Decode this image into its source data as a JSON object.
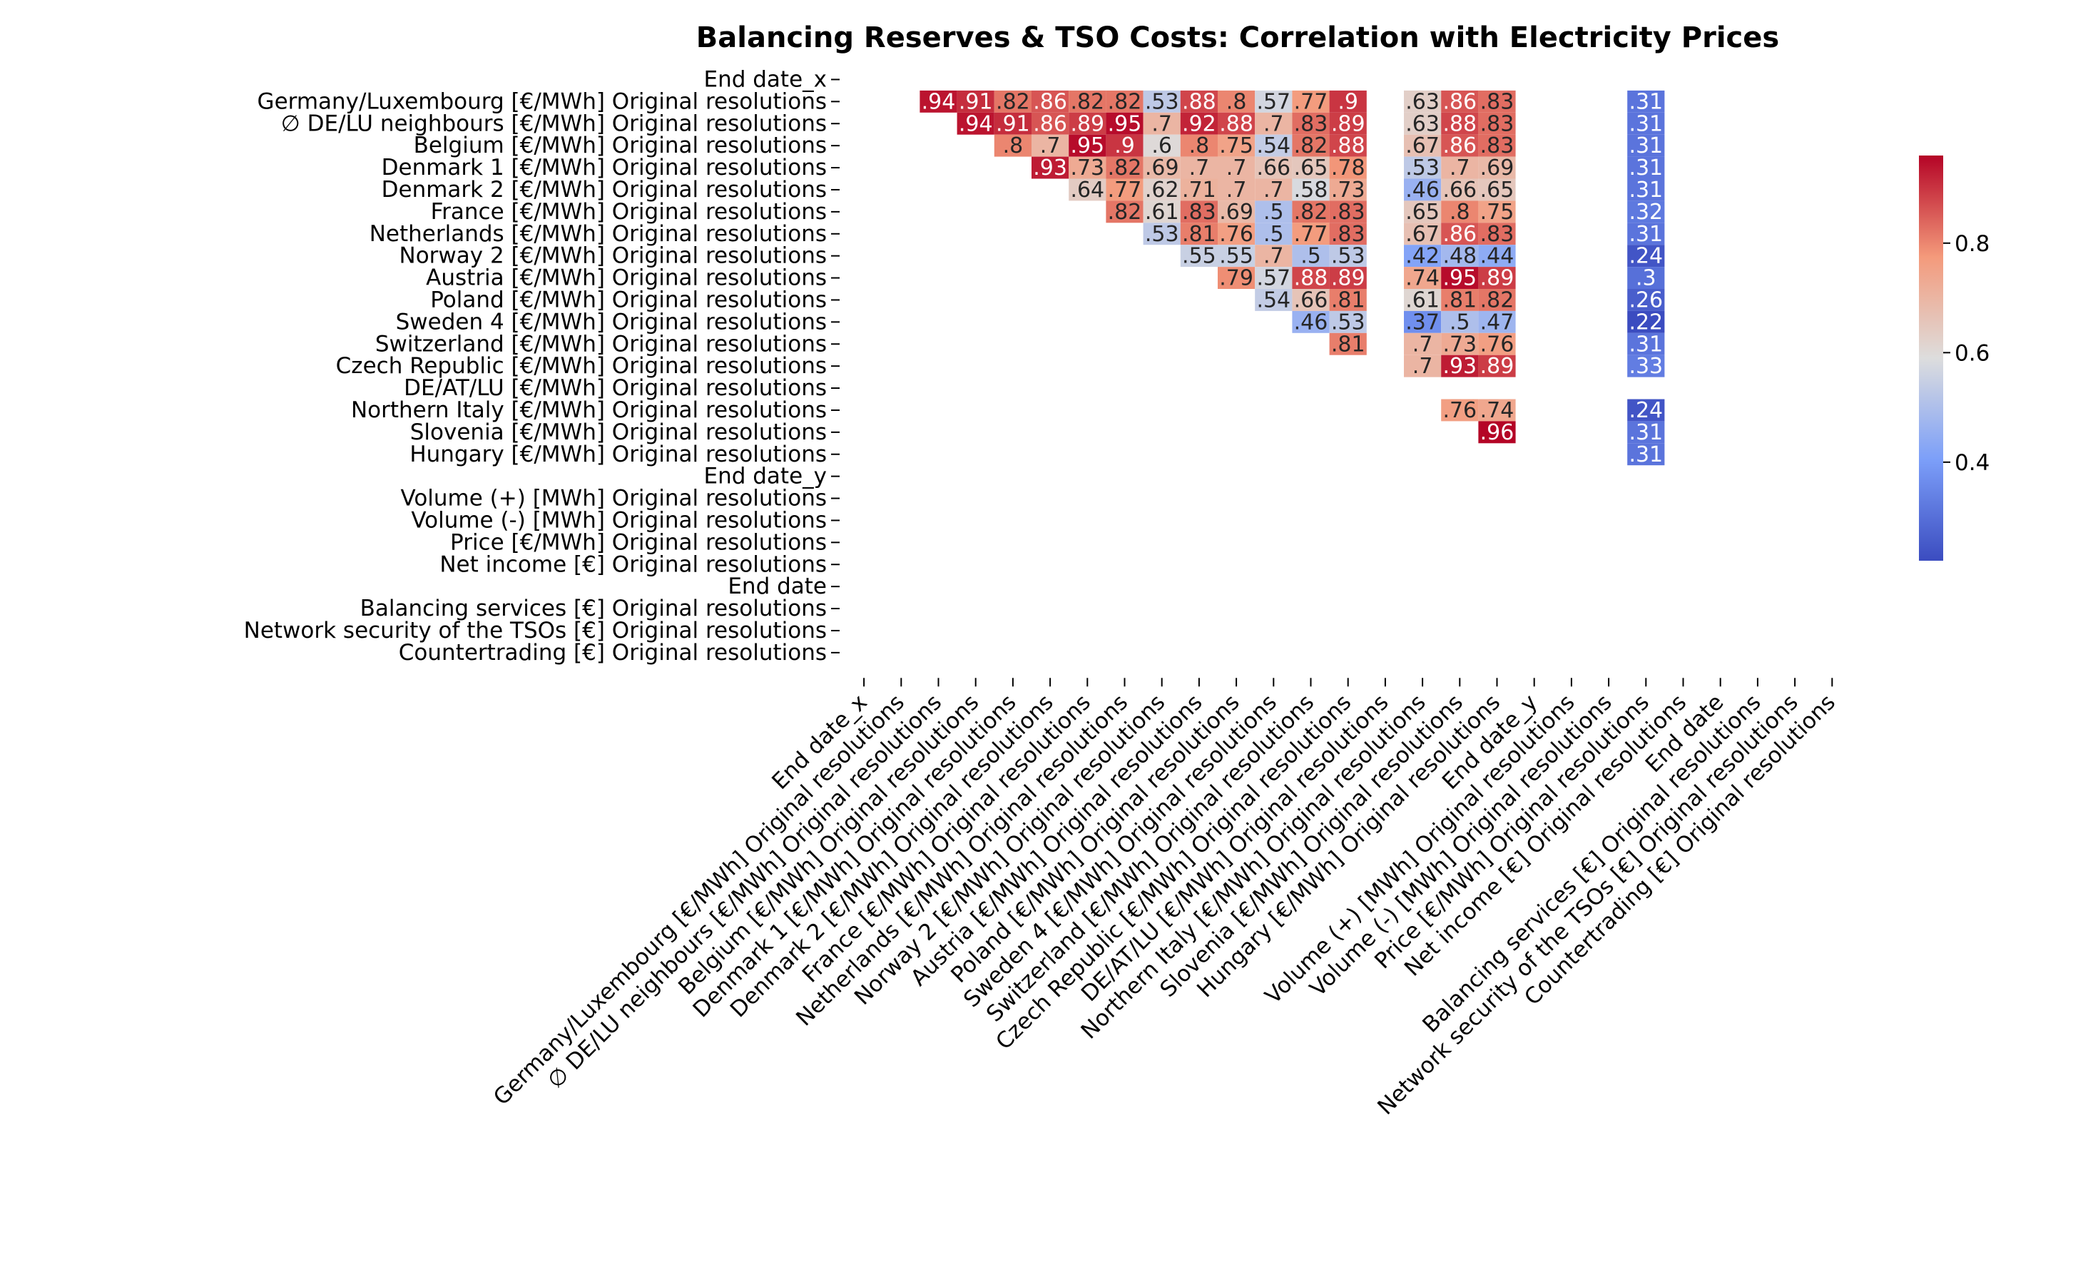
{
  "chart_data": {
    "type": "heatmap",
    "title": "Balancing Reserves & TSO Costs: Correlation with Electricity Prices",
    "xlabel": "",
    "ylabel": "",
    "colormap": "coolwarm",
    "colorbar": {
      "min": 0.22,
      "max": 0.96,
      "ticks": [
        "0.4",
        "0.6",
        "0.8"
      ]
    },
    "mask": "upper triangle shown, diagonal hidden, NaN blank",
    "labels": [
      "End date_x",
      "Germany/Luxembourg [€/MWh] Original resolutions",
      "∅ DE/LU neighbours [€/MWh] Original resolutions",
      "Belgium [€/MWh] Original resolutions",
      "Denmark 1 [€/MWh] Original resolutions",
      "Denmark 2 [€/MWh] Original resolutions",
      "France [€/MWh] Original resolutions",
      "Netherlands [€/MWh] Original resolutions",
      "Norway 2 [€/MWh] Original resolutions",
      "Austria [€/MWh] Original resolutions",
      "Poland [€/MWh] Original resolutions",
      "Sweden 4 [€/MWh] Original resolutions",
      "Switzerland [€/MWh] Original resolutions",
      "Czech Republic [€/MWh] Original resolutions",
      "DE/AT/LU [€/MWh] Original resolutions",
      "Northern Italy [€/MWh] Original resolutions",
      "Slovenia [€/MWh] Original resolutions",
      "Hungary [€/MWh] Original resolutions",
      "End date_y",
      "Volume (+) [MWh] Original resolutions",
      "Volume (-) [MWh] Original resolutions",
      "Price [€/MWh] Original resolutions",
      "Net income [€] Original resolutions",
      "End date",
      "Balancing services [€] Original resolutions",
      "Network security of the TSOs [€] Original resolutions",
      "Countertrading [€] Original resolutions"
    ],
    "cells": [
      {
        "r": 1,
        "c": 2,
        "v": 0.94
      },
      {
        "r": 1,
        "c": 3,
        "v": 0.91
      },
      {
        "r": 1,
        "c": 4,
        "v": 0.82
      },
      {
        "r": 1,
        "c": 5,
        "v": 0.86
      },
      {
        "r": 1,
        "c": 6,
        "v": 0.82
      },
      {
        "r": 1,
        "c": 7,
        "v": 0.82
      },
      {
        "r": 1,
        "c": 8,
        "v": 0.53
      },
      {
        "r": 1,
        "c": 9,
        "v": 0.88
      },
      {
        "r": 1,
        "c": 10,
        "v": 0.8
      },
      {
        "r": 1,
        "c": 11,
        "v": 0.57
      },
      {
        "r": 1,
        "c": 12,
        "v": 0.77
      },
      {
        "r": 1,
        "c": 13,
        "v": 0.9
      },
      {
        "r": 1,
        "c": 15,
        "v": 0.63
      },
      {
        "r": 1,
        "c": 16,
        "v": 0.86
      },
      {
        "r": 1,
        "c": 17,
        "v": 0.83
      },
      {
        "r": 1,
        "c": 21,
        "v": 0.31
      },
      {
        "r": 2,
        "c": 3,
        "v": 0.94
      },
      {
        "r": 2,
        "c": 4,
        "v": 0.91
      },
      {
        "r": 2,
        "c": 5,
        "v": 0.86
      },
      {
        "r": 2,
        "c": 6,
        "v": 0.89
      },
      {
        "r": 2,
        "c": 7,
        "v": 0.95
      },
      {
        "r": 2,
        "c": 8,
        "v": 0.7
      },
      {
        "r": 2,
        "c": 9,
        "v": 0.92
      },
      {
        "r": 2,
        "c": 10,
        "v": 0.88
      },
      {
        "r": 2,
        "c": 11,
        "v": 0.7
      },
      {
        "r": 2,
        "c": 12,
        "v": 0.83
      },
      {
        "r": 2,
        "c": 13,
        "v": 0.89
      },
      {
        "r": 2,
        "c": 15,
        "v": 0.63
      },
      {
        "r": 2,
        "c": 16,
        "v": 0.88
      },
      {
        "r": 2,
        "c": 17,
        "v": 0.83
      },
      {
        "r": 2,
        "c": 21,
        "v": 0.31
      },
      {
        "r": 3,
        "c": 4,
        "v": 0.8
      },
      {
        "r": 3,
        "c": 5,
        "v": 0.7
      },
      {
        "r": 3,
        "c": 6,
        "v": 0.95
      },
      {
        "r": 3,
        "c": 7,
        "v": 0.9
      },
      {
        "r": 3,
        "c": 8,
        "v": 0.6
      },
      {
        "r": 3,
        "c": 9,
        "v": 0.8
      },
      {
        "r": 3,
        "c": 10,
        "v": 0.75
      },
      {
        "r": 3,
        "c": 11,
        "v": 0.54
      },
      {
        "r": 3,
        "c": 12,
        "v": 0.82
      },
      {
        "r": 3,
        "c": 13,
        "v": 0.88
      },
      {
        "r": 3,
        "c": 15,
        "v": 0.67
      },
      {
        "r": 3,
        "c": 16,
        "v": 0.86
      },
      {
        "r": 3,
        "c": 17,
        "v": 0.83
      },
      {
        "r": 3,
        "c": 21,
        "v": 0.31
      },
      {
        "r": 4,
        "c": 5,
        "v": 0.93
      },
      {
        "r": 4,
        "c": 6,
        "v": 0.73
      },
      {
        "r": 4,
        "c": 7,
        "v": 0.82
      },
      {
        "r": 4,
        "c": 8,
        "v": 0.69
      },
      {
        "r": 4,
        "c": 9,
        "v": 0.7
      },
      {
        "r": 4,
        "c": 10,
        "v": 0.7
      },
      {
        "r": 4,
        "c": 11,
        "v": 0.66
      },
      {
        "r": 4,
        "c": 12,
        "v": 0.65
      },
      {
        "r": 4,
        "c": 13,
        "v": 0.78
      },
      {
        "r": 4,
        "c": 15,
        "v": 0.53
      },
      {
        "r": 4,
        "c": 16,
        "v": 0.7
      },
      {
        "r": 4,
        "c": 17,
        "v": 0.69
      },
      {
        "r": 4,
        "c": 21,
        "v": 0.31
      },
      {
        "r": 5,
        "c": 6,
        "v": 0.64
      },
      {
        "r": 5,
        "c": 7,
        "v": 0.77
      },
      {
        "r": 5,
        "c": 8,
        "v": 0.62
      },
      {
        "r": 5,
        "c": 9,
        "v": 0.71
      },
      {
        "r": 5,
        "c": 10,
        "v": 0.7
      },
      {
        "r": 5,
        "c": 11,
        "v": 0.7
      },
      {
        "r": 5,
        "c": 12,
        "v": 0.58
      },
      {
        "r": 5,
        "c": 13,
        "v": 0.73
      },
      {
        "r": 5,
        "c": 15,
        "v": 0.46
      },
      {
        "r": 5,
        "c": 16,
        "v": 0.66
      },
      {
        "r": 5,
        "c": 17,
        "v": 0.65
      },
      {
        "r": 5,
        "c": 21,
        "v": 0.31
      },
      {
        "r": 6,
        "c": 7,
        "v": 0.82
      },
      {
        "r": 6,
        "c": 8,
        "v": 0.61
      },
      {
        "r": 6,
        "c": 9,
        "v": 0.83
      },
      {
        "r": 6,
        "c": 10,
        "v": 0.69
      },
      {
        "r": 6,
        "c": 11,
        "v": 0.5
      },
      {
        "r": 6,
        "c": 12,
        "v": 0.82
      },
      {
        "r": 6,
        "c": 13,
        "v": 0.83
      },
      {
        "r": 6,
        "c": 15,
        "v": 0.65
      },
      {
        "r": 6,
        "c": 16,
        "v": 0.8
      },
      {
        "r": 6,
        "c": 17,
        "v": 0.75
      },
      {
        "r": 6,
        "c": 21,
        "v": 0.32
      },
      {
        "r": 7,
        "c": 8,
        "v": 0.53
      },
      {
        "r": 7,
        "c": 9,
        "v": 0.81
      },
      {
        "r": 7,
        "c": 10,
        "v": 0.76
      },
      {
        "r": 7,
        "c": 11,
        "v": 0.5
      },
      {
        "r": 7,
        "c": 12,
        "v": 0.77
      },
      {
        "r": 7,
        "c": 13,
        "v": 0.83
      },
      {
        "r": 7,
        "c": 15,
        "v": 0.67
      },
      {
        "r": 7,
        "c": 16,
        "v": 0.86
      },
      {
        "r": 7,
        "c": 17,
        "v": 0.83
      },
      {
        "r": 7,
        "c": 21,
        "v": 0.31
      },
      {
        "r": 8,
        "c": 9,
        "v": 0.55
      },
      {
        "r": 8,
        "c": 10,
        "v": 0.55
      },
      {
        "r": 8,
        "c": 11,
        "v": 0.7
      },
      {
        "r": 8,
        "c": 12,
        "v": 0.5
      },
      {
        "r": 8,
        "c": 13,
        "v": 0.53
      },
      {
        "r": 8,
        "c": 15,
        "v": 0.42
      },
      {
        "r": 8,
        "c": 16,
        "v": 0.48
      },
      {
        "r": 8,
        "c": 17,
        "v": 0.44
      },
      {
        "r": 8,
        "c": 21,
        "v": 0.24
      },
      {
        "r": 9,
        "c": 10,
        "v": 0.79
      },
      {
        "r": 9,
        "c": 11,
        "v": 0.57
      },
      {
        "r": 9,
        "c": 12,
        "v": 0.88
      },
      {
        "r": 9,
        "c": 13,
        "v": 0.89
      },
      {
        "r": 9,
        "c": 15,
        "v": 0.74
      },
      {
        "r": 9,
        "c": 16,
        "v": 0.95
      },
      {
        "r": 9,
        "c": 17,
        "v": 0.89
      },
      {
        "r": 9,
        "c": 21,
        "v": 0.3
      },
      {
        "r": 10,
        "c": 11,
        "v": 0.54
      },
      {
        "r": 10,
        "c": 12,
        "v": 0.66
      },
      {
        "r": 10,
        "c": 13,
        "v": 0.81
      },
      {
        "r": 10,
        "c": 15,
        "v": 0.61
      },
      {
        "r": 10,
        "c": 16,
        "v": 0.81
      },
      {
        "r": 10,
        "c": 17,
        "v": 0.82
      },
      {
        "r": 10,
        "c": 21,
        "v": 0.26
      },
      {
        "r": 11,
        "c": 12,
        "v": 0.46
      },
      {
        "r": 11,
        "c": 13,
        "v": 0.53
      },
      {
        "r": 11,
        "c": 15,
        "v": 0.37
      },
      {
        "r": 11,
        "c": 16,
        "v": 0.5
      },
      {
        "r": 11,
        "c": 17,
        "v": 0.47
      },
      {
        "r": 11,
        "c": 21,
        "v": 0.22
      },
      {
        "r": 12,
        "c": 13,
        "v": 0.81
      },
      {
        "r": 12,
        "c": 15,
        "v": 0.7
      },
      {
        "r": 12,
        "c": 16,
        "v": 0.73
      },
      {
        "r": 12,
        "c": 17,
        "v": 0.76
      },
      {
        "r": 12,
        "c": 21,
        "v": 0.31
      },
      {
        "r": 13,
        "c": 15,
        "v": 0.7
      },
      {
        "r": 13,
        "c": 16,
        "v": 0.93
      },
      {
        "r": 13,
        "c": 17,
        "v": 0.89
      },
      {
        "r": 13,
        "c": 21,
        "v": 0.33
      },
      {
        "r": 15,
        "c": 16,
        "v": 0.76
      },
      {
        "r": 15,
        "c": 17,
        "v": 0.74
      },
      {
        "r": 15,
        "c": 21,
        "v": 0.24
      },
      {
        "r": 16,
        "c": 17,
        "v": 0.96
      },
      {
        "r": 16,
        "c": 21,
        "v": 0.31
      },
      {
        "r": 17,
        "c": 21,
        "v": 0.31
      }
    ]
  }
}
